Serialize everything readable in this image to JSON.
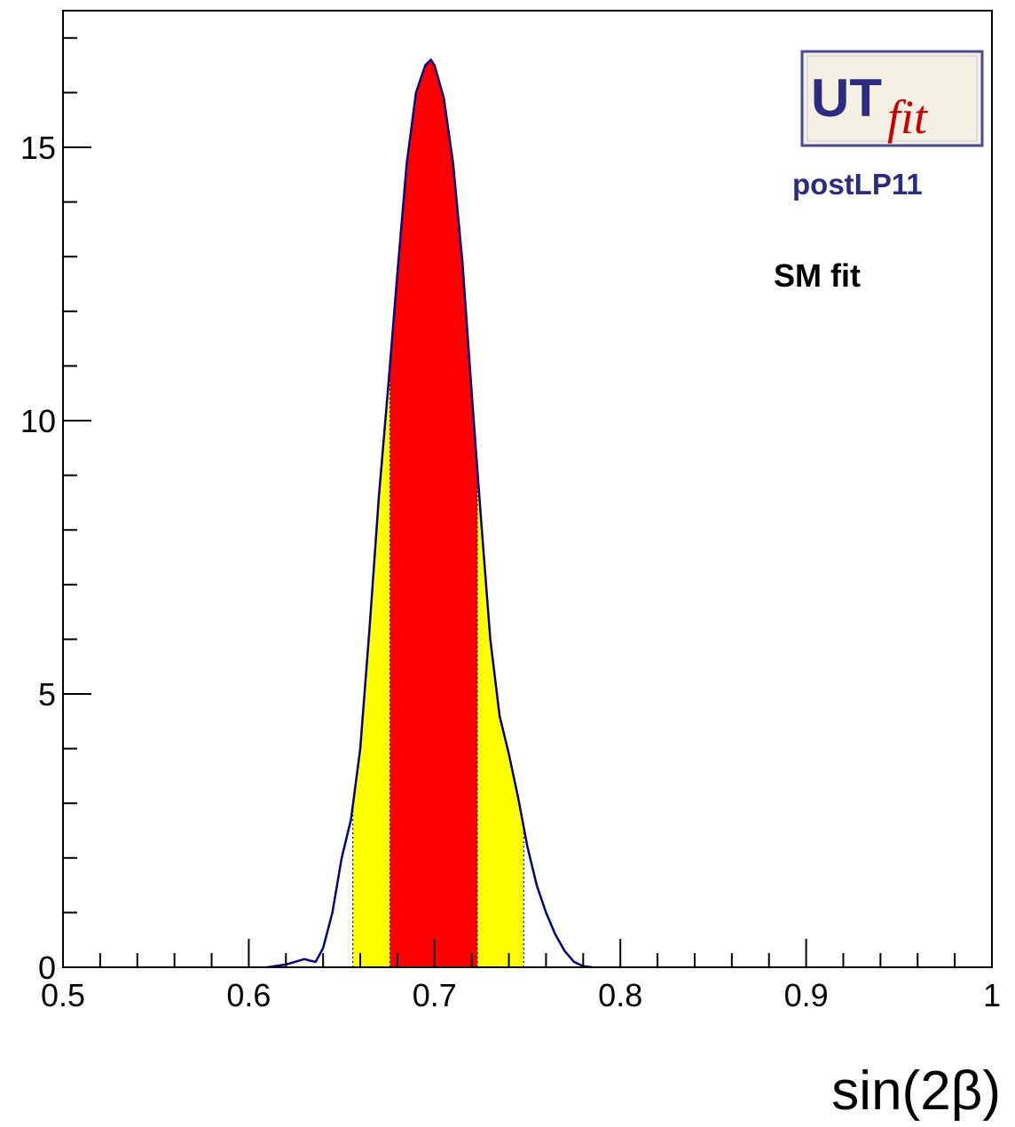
{
  "chart_data": {
    "type": "area",
    "title": "",
    "xlabel": "sin(2β)",
    "ylabel": "",
    "xlim": [
      0.5,
      1.0
    ],
    "ylim": [
      0,
      17.5
    ],
    "x_ticks": [
      "0.5",
      "0.6",
      "0.7",
      "0.8",
      "0.9",
      "1"
    ],
    "y_ticks": [
      "0",
      "5",
      "10",
      "15"
    ],
    "grid": false,
    "x": [
      0.61,
      0.62,
      0.625,
      0.63,
      0.633,
      0.636,
      0.64,
      0.645,
      0.65,
      0.655,
      0.66,
      0.665,
      0.67,
      0.675,
      0.68,
      0.685,
      0.69,
      0.695,
      0.698,
      0.7,
      0.705,
      0.71,
      0.715,
      0.72,
      0.725,
      0.73,
      0.735,
      0.74,
      0.745,
      0.75,
      0.755,
      0.76,
      0.765,
      0.77,
      0.775,
      0.78,
      0.785
    ],
    "values": [
      0.0,
      0.05,
      0.1,
      0.15,
      0.12,
      0.1,
      0.35,
      1.0,
      2.0,
      2.7,
      4.0,
      6.2,
      8.6,
      10.6,
      12.7,
      14.7,
      16.0,
      16.5,
      16.6,
      16.5,
      15.9,
      14.7,
      12.9,
      10.5,
      8.2,
      6.0,
      4.6,
      3.9,
      3.1,
      2.2,
      1.5,
      1.0,
      0.6,
      0.3,
      0.1,
      0.02,
      0.0
    ],
    "band_68": [
      0.676,
      0.723
    ],
    "band_95": [
      0.656,
      0.748
    ],
    "colors": {
      "line": "#000080",
      "band_68": "#ff0000",
      "band_95": "#ffff00"
    },
    "annotations": {
      "fit_label": "SM fit"
    },
    "logo": {
      "ut": "UT",
      "fit": "fit",
      "subtitle": "postLP11",
      "color": "#2b2b80",
      "fit_color": "#cc0000"
    }
  }
}
